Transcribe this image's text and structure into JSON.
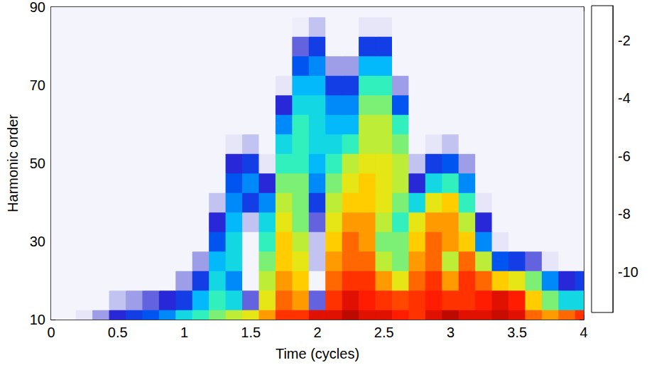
{
  "chart_data": {
    "type": "heatmap",
    "x_label": "Time (cycles)",
    "y_label": "Harmonic order",
    "x": [
      0,
      0.125,
      0.25,
      0.375,
      0.5,
      0.625,
      0.75,
      0.875,
      1,
      1.125,
      1.25,
      1.375,
      1.5,
      1.625,
      1.75,
      1.875,
      2,
      2.125,
      2.25,
      2.375,
      2.5,
      2.625,
      2.75,
      2.875,
      3,
      3.125,
      3.25,
      3.375,
      3.5,
      3.625,
      3.75,
      3.875,
      4
    ],
    "y": [
      10,
      15,
      20,
      25,
      30,
      35,
      40,
      45,
      50,
      55,
      60,
      65,
      70,
      75,
      80,
      85,
      90
    ],
    "values": [
      [
        -11,
        -11,
        -10.5,
        -9.5,
        -8.5,
        -8,
        -7.5,
        -7,
        -6,
        -5.5,
        -5,
        -4.5,
        -4,
        -3,
        -2,
        -2,
        -1.5,
        -1.5,
        -1.2,
        -1.5,
        -1.5,
        -1.8,
        -2,
        -1.5,
        -1.2,
        -1.5,
        -1.5,
        -1.3,
        -1.5,
        -2.5,
        -3,
        -2.5,
        -2
      ],
      [
        -11,
        -11,
        -11,
        -11,
        -10,
        -9.5,
        -9,
        -8.5,
        -8,
        -6.5,
        -5.5,
        -6,
        -9,
        -4,
        -2.5,
        -3,
        -9,
        -2,
        -1.5,
        -1.8,
        -2,
        -2.2,
        -2,
        -1.8,
        -2,
        -2,
        -1.8,
        -1.5,
        -1.8,
        -3.5,
        -5,
        -6,
        -6
      ],
      [
        -11,
        -11,
        -11,
        -11,
        -11,
        -11,
        -11,
        -11,
        -9.5,
        -8,
        -6,
        -7,
        -11,
        -4.5,
        -3,
        -3.5,
        -11,
        -2.5,
        -2,
        -2,
        -3,
        -4,
        -2.5,
        -2,
        -3,
        -2,
        -2.5,
        -3.5,
        -4,
        -5,
        -7,
        -8.5,
        -8
      ],
      [
        -11,
        -11,
        -11,
        -11,
        -11,
        -11,
        -11,
        -11,
        -11,
        -9.5,
        -6.5,
        -6,
        -11,
        -5,
        -3.5,
        -4,
        -10,
        -3,
        -2.5,
        -2.5,
        -4.5,
        -5,
        -3,
        -2.5,
        -4.5,
        -2.5,
        -4.5,
        -7.5,
        -8,
        -9,
        -10.5,
        -11,
        -11
      ],
      [
        -11,
        -11,
        -11,
        -11,
        -11,
        -11,
        -11,
        -11,
        -11,
        -11,
        -7.5,
        -6,
        -11,
        -5.5,
        -3.5,
        -4.5,
        -10,
        -3.5,
        -2.5,
        -3,
        -5,
        -5,
        -3.5,
        -2.5,
        -3,
        -3.5,
        -7,
        -10.5,
        -11,
        -11,
        -11,
        -11,
        -11
      ],
      [
        -11,
        -11,
        -11,
        -11,
        -11,
        -11,
        -11,
        -11,
        -11,
        -11,
        -8.5,
        -6.5,
        -10,
        -6,
        -4,
        -5,
        -9,
        -4,
        -3,
        -3,
        -4.5,
        -5.5,
        -4,
        -3,
        -3,
        -4.5,
        -8.5,
        -11,
        -11,
        -11,
        -11,
        -11,
        -11
      ],
      [
        -11,
        -11,
        -11,
        -11,
        -11,
        -11,
        -11,
        -11,
        -11,
        -11,
        -10,
        -7,
        -8,
        -7,
        -4.5,
        -5,
        -8,
        -4.5,
        -3.5,
        -3.5,
        -4,
        -5,
        -6,
        -4,
        -3.5,
        -5.5,
        -10.5,
        -11,
        -11,
        -11,
        -11,
        -11,
        -11
      ],
      [
        -11,
        -11,
        -11,
        -11,
        -11,
        -11,
        -11,
        -11,
        -11,
        -11,
        -11,
        -7.5,
        -7,
        -8.5,
        -5,
        -5,
        -7,
        -5,
        -4,
        -3.5,
        -4,
        -4.5,
        -8.5,
        -6,
        -5.5,
        -7,
        -11,
        -11,
        -11,
        -11,
        -11,
        -11,
        -11
      ],
      [
        -11,
        -11,
        -11,
        -11,
        -11,
        -11,
        -11,
        -11,
        -11,
        -11,
        -11,
        -8.5,
        -8,
        -10.5,
        -5.5,
        -5.5,
        -6.5,
        -5.5,
        -4.5,
        -4,
        -4,
        -4.5,
        -10,
        -8,
        -7.5,
        -9.5,
        -11,
        -11,
        -11,
        -11,
        -11,
        -11,
        -11
      ],
      [
        -11,
        -11,
        -11,
        -11,
        -11,
        -11,
        -11,
        -11,
        -11,
        -11,
        -11,
        -10.5,
        -10,
        -11,
        -6,
        -5.5,
        -6,
        -6,
        -5.5,
        -4.5,
        -4.5,
        -5,
        -11,
        -10.5,
        -10,
        -11,
        -11,
        -11,
        -11,
        -11,
        -11,
        -11,
        -11
      ],
      [
        -11,
        -11,
        -11,
        -11,
        -11,
        -11,
        -11,
        -11,
        -11,
        -11,
        -11,
        -11,
        -11,
        -11,
        -7,
        -5.5,
        -6,
        -6.5,
        -6.5,
        -4.5,
        -4.5,
        -5.5,
        -11,
        -11,
        -11,
        -11,
        -11,
        -11,
        -11,
        -11,
        -11,
        -11,
        -11
      ],
      [
        -11,
        -11,
        -11,
        -11,
        -11,
        -11,
        -11,
        -11,
        -11,
        -11,
        -11,
        -11,
        -11,
        -11,
        -8.5,
        -6,
        -6,
        -7,
        -7,
        -5,
        -5,
        -7.5,
        -11,
        -11,
        -11,
        -11,
        -11,
        -11,
        -11,
        -11,
        -11,
        -11,
        -11
      ],
      [
        -11,
        -11,
        -11,
        -11,
        -11,
        -11,
        -11,
        -11,
        -11,
        -11,
        -11,
        -11,
        -11,
        -11,
        -10.5,
        -6.5,
        -6.5,
        -8,
        -8,
        -5.5,
        -5.5,
        -9.5,
        -11,
        -11,
        -11,
        -11,
        -11,
        -11,
        -11,
        -11,
        -11,
        -11,
        -11
      ],
      [
        -11,
        -11,
        -11,
        -11,
        -11,
        -11,
        -11,
        -11,
        -11,
        -11,
        -11,
        -11,
        -11,
        -11,
        -11,
        -7.5,
        -7,
        -9.5,
        -9.5,
        -6.5,
        -6.5,
        -11,
        -11,
        -11,
        -11,
        -11,
        -11,
        -11,
        -11,
        -11,
        -11,
        -11,
        -11
      ],
      [
        -11,
        -11,
        -11,
        -11,
        -11,
        -11,
        -11,
        -11,
        -11,
        -11,
        -11,
        -11,
        -11,
        -11,
        -11,
        -9,
        -8,
        -11,
        -11,
        -8,
        -8,
        -11,
        -11,
        -11,
        -11,
        -11,
        -11,
        -11,
        -11,
        -11,
        -11,
        -11,
        -11
      ],
      [
        -11,
        -11,
        -11,
        -11,
        -11,
        -11,
        -11,
        -11,
        -11,
        -11,
        -11,
        -11,
        -11,
        -11,
        -11,
        -10.8,
        -10,
        -11,
        -11,
        -10.5,
        -10.5,
        -11,
        -11,
        -11,
        -11,
        -11,
        -11,
        -11,
        -11,
        -11,
        -11,
        -11,
        -11
      ],
      [
        -11,
        -11,
        -11,
        -11,
        -11,
        -11,
        -11,
        -11,
        -11,
        -11,
        -11,
        -11,
        -11,
        -11,
        -11,
        -11,
        -11,
        -11,
        -11,
        -11,
        -11,
        -11,
        -11,
        -11,
        -11,
        -11,
        -11,
        -11,
        -11,
        -11,
        -11,
        -11,
        -11
      ]
    ],
    "xlim": [
      0,
      4
    ],
    "xticks": [
      0,
      0.5,
      1,
      1.5,
      2,
      2.5,
      3,
      3.5,
      4
    ],
    "ylim": [
      10,
      90
    ],
    "yticks": [
      10,
      30,
      50,
      70,
      90
    ],
    "colorbar": {
      "range": [
        -11.4,
        -0.8
      ],
      "ticks": [
        -10,
        -8,
        -6,
        -4,
        -2
      ]
    }
  }
}
